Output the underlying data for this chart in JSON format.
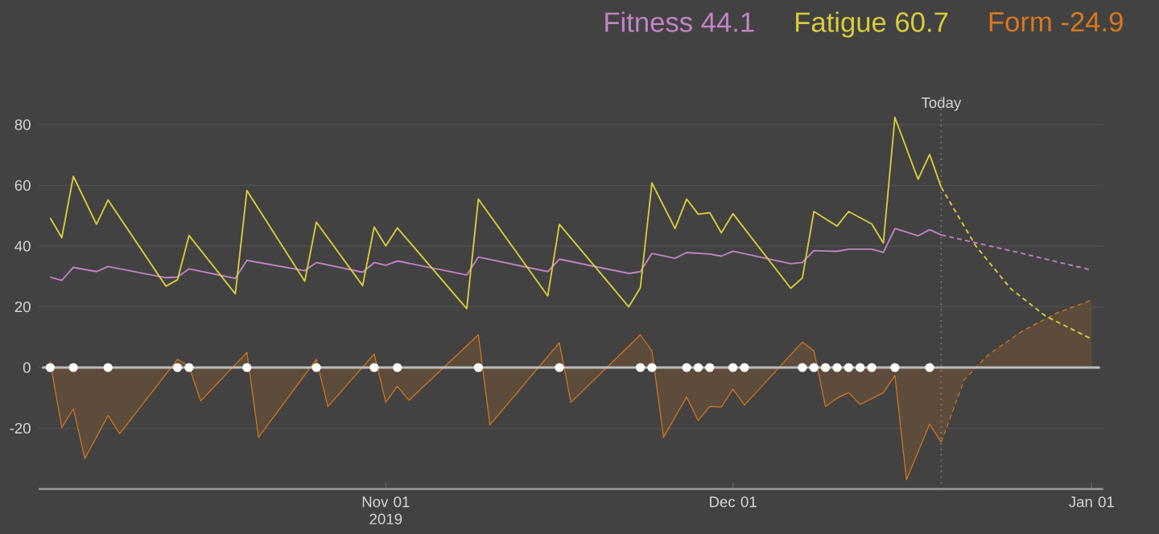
{
  "chart_data": {
    "type": "line",
    "xlim": [
      "2019-10-02",
      "2020-01-02"
    ],
    "ylim": [
      -40,
      90
    ],
    "xticks": [
      {
        "value": "2019-11-01",
        "label": "Nov 01 2019"
      },
      {
        "value": "2019-12-01",
        "label": "Dec 01"
      },
      {
        "value": "2020-01-01",
        "label": "Jan 01"
      }
    ],
    "yticks": [
      -20,
      0,
      20,
      40,
      60,
      80
    ],
    "grid": "y",
    "legend": "top right",
    "series": [
      {
        "name": "Fitness 44.1",
        "color": "#c184c5",
        "line_style": "solid",
        "x": [
          "2019-10-03",
          "2019-10-04",
          "2019-10-05",
          "2019-10-07",
          "2019-10-08",
          "2019-10-13",
          "2019-10-14",
          "2019-10-15",
          "2019-10-19",
          "2019-10-20",
          "2019-10-25",
          "2019-10-26",
          "2019-10-30",
          "2019-10-31",
          "2019-11-01",
          "2019-11-02",
          "2019-11-08",
          "2019-11-09",
          "2019-11-15",
          "2019-11-16",
          "2019-11-22",
          "2019-11-23",
          "2019-11-24",
          "2019-11-26",
          "2019-11-27",
          "2019-11-29",
          "2019-11-30",
          "2019-12-01",
          "2019-12-06",
          "2019-12-07",
          "2019-12-08",
          "2019-12-10",
          "2019-12-11",
          "2019-12-13",
          "2019-12-14",
          "2019-12-15",
          "2019-12-17",
          "2019-12-18",
          "2019-12-19"
        ],
        "values": [
          29.8,
          28.7,
          33,
          31.6,
          33.3,
          29.6,
          29.8,
          32.5,
          29.4,
          35.3,
          31.9,
          34.6,
          31.4,
          34.6,
          33.7,
          35.1,
          30.5,
          36.4,
          31.6,
          35.7,
          31,
          31.6,
          37.6,
          36,
          37.9,
          37.4,
          36.7,
          38.3,
          34.2,
          34.6,
          38.5,
          38.3,
          39,
          39,
          37.9,
          45.8,
          43.4,
          45.4,
          43.7
        ]
      },
      {
        "name": "Fatigue 60.7",
        "color": "#d8cc3a",
        "line_style": "solid",
        "x": [
          "2019-10-03",
          "2019-10-04",
          "2019-10-05",
          "2019-10-07",
          "2019-10-08",
          "2019-10-13",
          "2019-10-14",
          "2019-10-15",
          "2019-10-19",
          "2019-10-20",
          "2019-10-25",
          "2019-10-26",
          "2019-10-30",
          "2019-10-31",
          "2019-11-01",
          "2019-11-02",
          "2019-11-08",
          "2019-11-09",
          "2019-11-15",
          "2019-11-16",
          "2019-11-22",
          "2019-11-23",
          "2019-11-24",
          "2019-11-26",
          "2019-11-27",
          "2019-11-28",
          "2019-11-29",
          "2019-11-30",
          "2019-12-01",
          "2019-12-06",
          "2019-12-07",
          "2019-12-08",
          "2019-12-10",
          "2019-12-11",
          "2019-12-13",
          "2019-12-14",
          "2019-12-15",
          "2019-12-17",
          "2019-12-18",
          "2019-12-19"
        ],
        "values": [
          49.3,
          42.8,
          63,
          47.2,
          55.2,
          26.8,
          28.9,
          43.5,
          24.3,
          58.3,
          28.4,
          47.9,
          27,
          46.3,
          40.1,
          46,
          19.4,
          55.5,
          23.6,
          47.2,
          20,
          26.3,
          60.8,
          45.8,
          55.5,
          50.5,
          51,
          44.4,
          50.7,
          26.1,
          29.5,
          51.4,
          46.6,
          51.4,
          47.3,
          41,
          82.4,
          62,
          70.2,
          59.4
        ]
      },
      {
        "name": "Form -24.9",
        "color": "#d9771e",
        "type": "area",
        "line_style": "solid",
        "x": [
          "2019-10-03",
          "2019-10-04",
          "2019-10-05",
          "2019-10-06",
          "2019-10-08",
          "2019-10-09",
          "2019-10-14",
          "2019-10-15",
          "2019-10-16",
          "2019-10-20",
          "2019-10-21",
          "2019-10-26",
          "2019-10-27",
          "2019-10-31",
          "2019-11-01",
          "2019-11-02",
          "2019-11-03",
          "2019-11-09",
          "2019-11-10",
          "2019-11-16",
          "2019-11-17",
          "2019-11-23",
          "2019-11-24",
          "2019-11-25",
          "2019-11-27",
          "2019-11-28",
          "2019-11-29",
          "2019-11-30",
          "2019-12-01",
          "2019-12-02",
          "2019-12-07",
          "2019-12-08",
          "2019-12-09",
          "2019-12-10",
          "2019-12-11",
          "2019-12-12",
          "2019-12-14",
          "2019-12-15",
          "2019-12-16",
          "2019-12-18",
          "2019-12-19"
        ],
        "values": [
          2,
          -19.8,
          -13.6,
          -30,
          -15.8,
          -21.8,
          2.7,
          0.4,
          -11,
          5,
          -23,
          2.7,
          -12.9,
          4.5,
          -11.5,
          -6.2,
          -10.8,
          10.8,
          -18.9,
          8.2,
          -11.5,
          10.8,
          5.5,
          -23,
          -9.7,
          -17.5,
          -12.8,
          -13,
          -7.1,
          -12.4,
          8.4,
          5.5,
          -12.8,
          -10.1,
          -8.3,
          -12.2,
          -8.3,
          -2.6,
          -37,
          -18.6,
          -24.6
        ]
      },
      {
        "color": "#d9771e",
        "type": "area",
        "line_style": "dashed",
        "x": [
          "2019-12-19",
          "2019-12-21",
          "2019-12-23",
          "2019-12-26",
          "2019-12-29",
          "2020-01-01"
        ],
        "values": [
          -24.6,
          -4,
          4,
          12,
          18,
          22.2
        ]
      },
      {
        "color": "#c184c5",
        "line_style": "dashed",
        "x": [
          "2019-12-19",
          "2019-12-25",
          "2020-01-01"
        ],
        "values": [
          43.7,
          38.5,
          32.1
        ]
      },
      {
        "color": "#d8cc3a",
        "line_style": "dashed",
        "x": [
          "2019-12-19",
          "2019-12-22",
          "2019-12-25",
          "2019-12-28",
          "2020-01-01"
        ],
        "values": [
          59.4,
          40,
          26,
          17,
          9.4
        ]
      },
      {
        "color": "#ffffff",
        "type": "scatter",
        "x": [
          "2019-10-03",
          "2019-10-05",
          "2019-10-08",
          "2019-10-14",
          "2019-10-15",
          "2019-10-20",
          "2019-10-26",
          "2019-10-31",
          "2019-11-02",
          "2019-11-09",
          "2019-11-16",
          "2019-11-23",
          "2019-11-24",
          "2019-11-27",
          "2019-11-28",
          "2019-11-29",
          "2019-12-01",
          "2019-12-02",
          "2019-12-07",
          "2019-12-08",
          "2019-12-09",
          "2019-12-10",
          "2019-12-11",
          "2019-12-12",
          "2019-12-13",
          "2019-12-15",
          "2019-12-18"
        ],
        "values": [
          0,
          0,
          0,
          0,
          0,
          0,
          0,
          0,
          0,
          0,
          0,
          0,
          0,
          0,
          0,
          0,
          0,
          0,
          0,
          0,
          0,
          0,
          0,
          0,
          0,
          0,
          0
        ]
      }
    ],
    "ref_lines": [
      {
        "axis": "y",
        "value": 0,
        "color": "#bdbdbd",
        "line_style": "solid"
      },
      {
        "axis": "x",
        "value": "2019-12-19",
        "label": "Today",
        "color": "#8a8a8a",
        "line_style": "dotted"
      }
    ]
  }
}
